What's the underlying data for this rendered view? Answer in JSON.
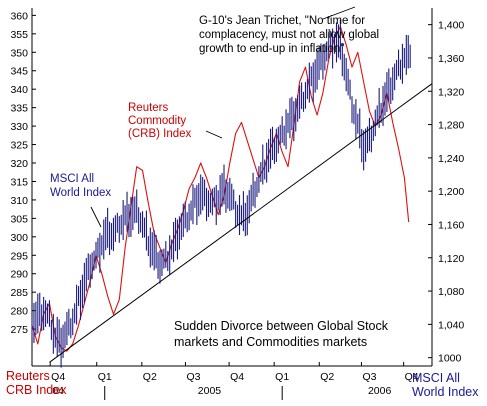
{
  "chart_data": {
    "type": "line",
    "title": "",
    "annotations": {
      "quote": [
        "G-10's Jean Trichet, \"No time for",
        "complacency, must not allow global",
        "growth to end-up in inflation\""
      ],
      "crb": [
        "Reuters",
        "Commodity",
        "(CRB) Index"
      ],
      "msci": [
        "MSCI All",
        "World Index"
      ],
      "divorce": [
        "Sudden Divorce between Global Stock",
        "markets and Commodities markets"
      ]
    },
    "left_axis": {
      "label": [
        "Reuters",
        "CRB Index"
      ],
      "min": 265,
      "max": 362,
      "ticks": [
        275,
        280,
        285,
        290,
        295,
        300,
        305,
        310,
        315,
        320,
        325,
        330,
        335,
        340,
        345,
        350,
        355,
        360
      ]
    },
    "right_axis": {
      "label": [
        "MSCI All",
        "World Index"
      ],
      "min": 990,
      "max": 1420,
      "ticks": [
        1000,
        1040,
        1080,
        1120,
        1160,
        1200,
        1240,
        1280,
        1320,
        1360,
        1400
      ],
      "tick_labels": [
        "1000",
        "1,040",
        "1,080",
        "1,120",
        "1,160",
        "1,200",
        "1,240",
        "1,280",
        "1,320",
        "1,360",
        "1,400"
      ]
    },
    "x_axis": {
      "quarters": [
        {
          "label": "Q4",
          "t": 1.8
        },
        {
          "label": "Q1",
          "t": 5.0
        },
        {
          "label": "Q2",
          "t": 8.1
        },
        {
          "label": "Q3",
          "t": 11.1
        },
        {
          "label": "Q4",
          "t": 14.1
        },
        {
          "label": "Q1",
          "t": 17.2
        },
        {
          "label": "Q2",
          "t": 20.3
        },
        {
          "label": "Q3",
          "t": 23.2
        },
        {
          "label": "Q4",
          "t": 26.1
        }
      ],
      "years": [
        {
          "label": "04",
          "t": 1.8
        },
        {
          "label": "2005",
          "t": 12.2
        },
        {
          "label": "2006",
          "t": 23.9
        }
      ],
      "year_marks": [
        5.0,
        17.2
      ],
      "t_min": 0,
      "t_max": 27.5
    },
    "series": [
      {
        "name": "Reuters Commodity (CRB) Index",
        "axis": "left",
        "color": "#dd1111",
        "points": [
          [
            0,
            276
          ],
          [
            0.4,
            271
          ],
          [
            0.8,
            279
          ],
          [
            1.2,
            282
          ],
          [
            1.6,
            273
          ],
          [
            2.0,
            270
          ],
          [
            2.4,
            269
          ],
          [
            2.8,
            271
          ],
          [
            3.2,
            276
          ],
          [
            3.6,
            282
          ],
          [
            4.0,
            288
          ],
          [
            4.4,
            295
          ],
          [
            4.8,
            290
          ],
          [
            5.2,
            284
          ],
          [
            5.6,
            279
          ],
          [
            6.0,
            283
          ],
          [
            6.4,
            297
          ],
          [
            6.8,
            308
          ],
          [
            7.2,
            319
          ],
          [
            7.6,
            318
          ],
          [
            8.0,
            309
          ],
          [
            8.4,
            301
          ],
          [
            8.8,
            297
          ],
          [
            9.2,
            293
          ],
          [
            9.6,
            298
          ],
          [
            10.0,
            302
          ],
          [
            10.4,
            307
          ],
          [
            10.8,
            313
          ],
          [
            11.2,
            316
          ],
          [
            11.6,
            320
          ],
          [
            12.0,
            316
          ],
          [
            12.4,
            311
          ],
          [
            12.8,
            306
          ],
          [
            13.2,
            311
          ],
          [
            13.6,
            320
          ],
          [
            14.0,
            328
          ],
          [
            14.4,
            331
          ],
          [
            14.8,
            326
          ],
          [
            15.2,
            321
          ],
          [
            15.6,
            316
          ],
          [
            16.0,
            319
          ],
          [
            16.4,
            324
          ],
          [
            16.8,
            328
          ],
          [
            17.2,
            323
          ],
          [
            17.6,
            319
          ],
          [
            18.0,
            330
          ],
          [
            18.4,
            342
          ],
          [
            18.8,
            346
          ],
          [
            19.2,
            338
          ],
          [
            19.6,
            333
          ],
          [
            20.0,
            339
          ],
          [
            20.4,
            348
          ],
          [
            20.8,
            354
          ],
          [
            21.2,
            357
          ],
          [
            21.6,
            352
          ],
          [
            22.0,
            346
          ],
          [
            22.4,
            350
          ],
          [
            22.8,
            342
          ],
          [
            23.2,
            334
          ],
          [
            23.6,
            330
          ],
          [
            24.0,
            333
          ],
          [
            24.4,
            339
          ],
          [
            24.8,
            331
          ],
          [
            25.2,
            324
          ],
          [
            25.6,
            316
          ],
          [
            25.9,
            304
          ]
        ]
      },
      {
        "name": "MSCI All World Index",
        "axis": "right",
        "color": "#1a1a80",
        "points": [
          [
            0,
            1042
          ],
          [
            0.4,
            1050
          ],
          [
            0.8,
            1056
          ],
          [
            1.2,
            1047
          ],
          [
            1.6,
            1024
          ],
          [
            2.0,
            1018
          ],
          [
            2.4,
            1032
          ],
          [
            2.8,
            1046
          ],
          [
            3.2,
            1068
          ],
          [
            3.6,
            1090
          ],
          [
            4.0,
            1110
          ],
          [
            4.4,
            1120
          ],
          [
            4.8,
            1138
          ],
          [
            5.2,
            1150
          ],
          [
            5.6,
            1148
          ],
          [
            6.0,
            1160
          ],
          [
            6.4,
            1168
          ],
          [
            6.8,
            1172
          ],
          [
            7.2,
            1176
          ],
          [
            7.6,
            1160
          ],
          [
            8.0,
            1140
          ],
          [
            8.4,
            1126
          ],
          [
            8.8,
            1112
          ],
          [
            9.2,
            1118
          ],
          [
            9.6,
            1130
          ],
          [
            10.0,
            1148
          ],
          [
            10.4,
            1162
          ],
          [
            10.8,
            1172
          ],
          [
            11.2,
            1186
          ],
          [
            11.6,
            1196
          ],
          [
            12.0,
            1190
          ],
          [
            12.4,
            1184
          ],
          [
            12.8,
            1192
          ],
          [
            13.2,
            1202
          ],
          [
            13.6,
            1196
          ],
          [
            14.0,
            1178
          ],
          [
            14.4,
            1168
          ],
          [
            14.8,
            1174
          ],
          [
            15.2,
            1196
          ],
          [
            15.6,
            1214
          ],
          [
            16.0,
            1232
          ],
          [
            16.4,
            1248
          ],
          [
            16.8,
            1258
          ],
          [
            17.2,
            1268
          ],
          [
            17.6,
            1282
          ],
          [
            18.0,
            1290
          ],
          [
            18.4,
            1304
          ],
          [
            18.8,
            1318
          ],
          [
            19.2,
            1332
          ],
          [
            19.6,
            1346
          ],
          [
            20.0,
            1360
          ],
          [
            20.4,
            1372
          ],
          [
            20.8,
            1380
          ],
          [
            21.2,
            1376
          ],
          [
            21.6,
            1340
          ],
          [
            22.0,
            1304
          ],
          [
            22.4,
            1278
          ],
          [
            22.8,
            1252
          ],
          [
            23.2,
            1262
          ],
          [
            23.6,
            1282
          ],
          [
            24.0,
            1300
          ],
          [
            24.4,
            1316
          ],
          [
            24.8,
            1332
          ],
          [
            25.2,
            1348
          ],
          [
            25.6,
            1360
          ],
          [
            26.0,
            1362
          ]
        ]
      },
      {
        "name": "trendline",
        "axis": "left",
        "color": "#000000",
        "points": [
          [
            1.2,
            266
          ],
          [
            27.5,
            341.5
          ]
        ]
      }
    ]
  }
}
